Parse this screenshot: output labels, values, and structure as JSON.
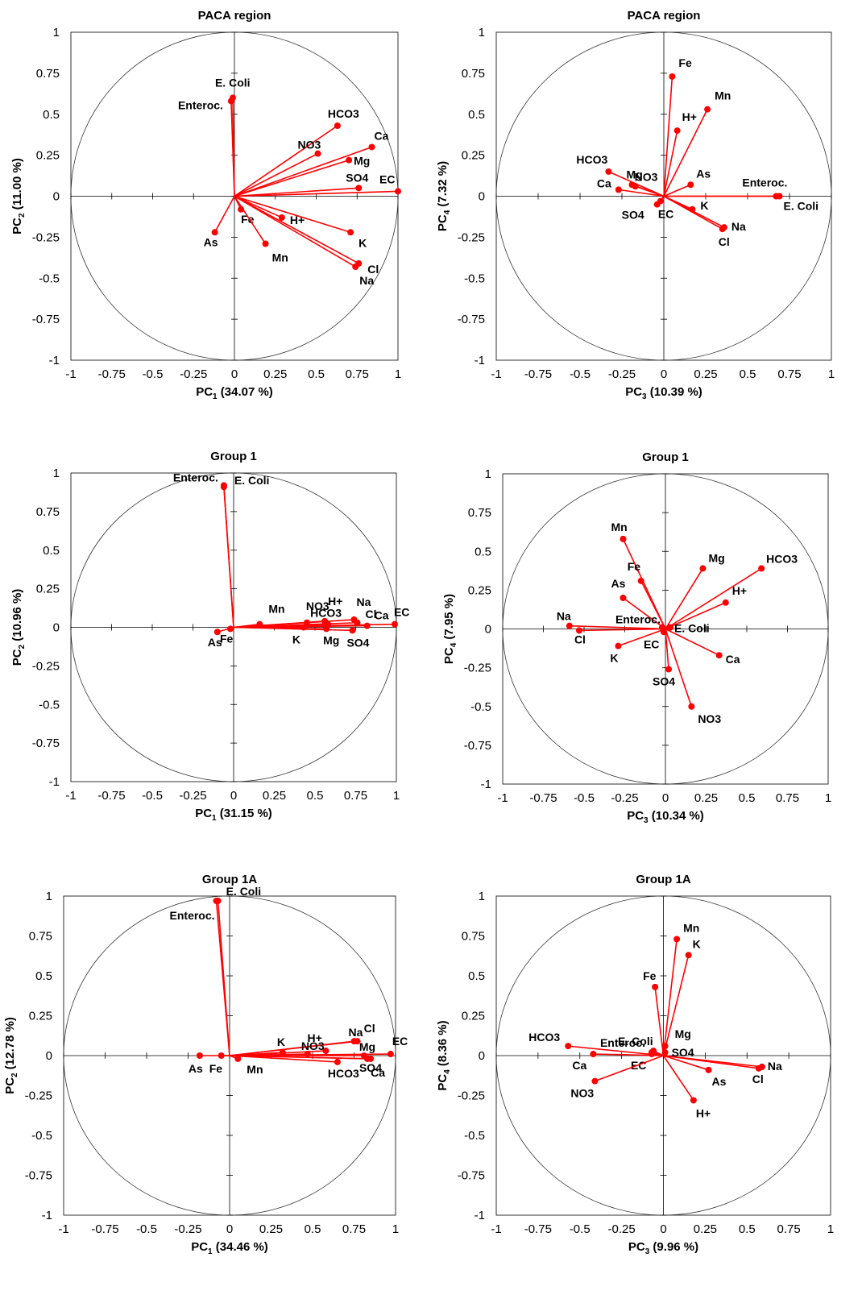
{
  "figure": {
    "background": "#ffffff",
    "vector_color": "#ff0000",
    "axis_color": "#000000"
  },
  "chart_data": [
    {
      "type": "scatter",
      "title": "PACA region",
      "xlabel_main": "PC",
      "xlabel_sub": "1",
      "xlabel_tail": " (34.07 %)",
      "ylabel_main": "PC",
      "ylabel_sub": "2",
      "ylabel_tail": " (11.00 %)",
      "xlim": [
        -1,
        1
      ],
      "ylim": [
        -1,
        1
      ],
      "xticks": [
        "-1",
        "-0.75",
        "-0.5",
        "-0.25",
        "0",
        "0.25",
        "0.5",
        "0.75",
        "1"
      ],
      "yticks": [
        "-1",
        "-0.75",
        "-0.5",
        "-0.25",
        "0",
        "0.25",
        "0.5",
        "0.75",
        "1"
      ],
      "points": [
        {
          "label": "E. Coli",
          "x": -0.01,
          "y": 0.6
        },
        {
          "label": "Enteroc.",
          "x": -0.02,
          "y": 0.58
        },
        {
          "label": "HCO3",
          "x": 0.63,
          "y": 0.43
        },
        {
          "label": "Ca",
          "x": 0.84,
          "y": 0.3
        },
        {
          "label": "NO3",
          "x": 0.51,
          "y": 0.26
        },
        {
          "label": "Mg",
          "x": 0.7,
          "y": 0.22
        },
        {
          "label": "SO4",
          "x": 0.76,
          "y": 0.05
        },
        {
          "label": "EC",
          "x": 1.0,
          "y": 0.03
        },
        {
          "label": "Fe",
          "x": 0.04,
          "y": -0.08
        },
        {
          "label": "H+",
          "x": 0.29,
          "y": -0.13
        },
        {
          "label": "As",
          "x": -0.12,
          "y": -0.22
        },
        {
          "label": "K",
          "x": 0.71,
          "y": -0.22
        },
        {
          "label": "Mn",
          "x": 0.19,
          "y": -0.29
        },
        {
          "label": "Cl",
          "x": 0.76,
          "y": -0.41
        },
        {
          "label": "Na",
          "x": 0.74,
          "y": -0.43
        }
      ]
    },
    {
      "type": "scatter",
      "title": "PACA region",
      "xlabel_main": "PC",
      "xlabel_sub": "3",
      "xlabel_tail": " (10.39 %)",
      "ylabel_main": "PC",
      "ylabel_sub": "4",
      "ylabel_tail": " (7.32 %)",
      "xlim": [
        -1,
        1
      ],
      "ylim": [
        -1,
        1
      ],
      "xticks": [
        "-1",
        "-0.75",
        "-0.5",
        "-0.25",
        "0",
        "0.25",
        "0.5",
        "0.75",
        "1"
      ],
      "yticks": [
        "-1",
        "-0.75",
        "-0.5",
        "-0.25",
        "0",
        "0.25",
        "0.5",
        "0.75",
        "1"
      ],
      "points": [
        {
          "label": "Fe",
          "x": 0.05,
          "y": 0.73
        },
        {
          "label": "Mn",
          "x": 0.26,
          "y": 0.53
        },
        {
          "label": "H+",
          "x": 0.08,
          "y": 0.4
        },
        {
          "label": "HCO3",
          "x": -0.33,
          "y": 0.15
        },
        {
          "label": "Mg",
          "x": -0.19,
          "y": 0.07
        },
        {
          "label": "NO3",
          "x": -0.17,
          "y": 0.06
        },
        {
          "label": "Ca",
          "x": -0.27,
          "y": 0.04
        },
        {
          "label": "As",
          "x": 0.16,
          "y": 0.07
        },
        {
          "label": "Enteroc.",
          "x": 0.67,
          "y": 0.0
        },
        {
          "label": "E. Coli",
          "x": 0.69,
          "y": 0.0
        },
        {
          "label": "SO4",
          "x": -0.04,
          "y": -0.05
        },
        {
          "label": "EC",
          "x": -0.02,
          "y": -0.03
        },
        {
          "label": "K",
          "x": 0.17,
          "y": -0.08
        },
        {
          "label": "Na",
          "x": 0.36,
          "y": -0.19
        },
        {
          "label": "Cl",
          "x": 0.35,
          "y": -0.2
        }
      ]
    },
    {
      "type": "scatter",
      "title": "Group 1",
      "xlabel_main": "PC",
      "xlabel_sub": "1",
      "xlabel_tail": " (31.15 %)",
      "ylabel_main": "PC",
      "ylabel_sub": "2",
      "ylabel_tail": " (10.96 %)",
      "xlim": [
        -1,
        1
      ],
      "ylim": [
        -1,
        1
      ],
      "xticks": [
        "-1",
        "-0.75",
        "-0.5",
        "-0.25",
        "0",
        "0.25",
        "0.5",
        "0.75",
        "1"
      ],
      "yticks": [
        "-1",
        "-0.75",
        "-0.5",
        "-0.25",
        "0",
        "0.25",
        "0.5",
        "0.75",
        "1"
      ],
      "points": [
        {
          "label": "Enteroc.",
          "x": -0.06,
          "y": 0.92
        },
        {
          "label": "E. Coli",
          "x": -0.06,
          "y": 0.91
        },
        {
          "label": "Mn",
          "x": 0.16,
          "y": 0.02
        },
        {
          "label": "NO3",
          "x": 0.45,
          "y": 0.03
        },
        {
          "label": "H+",
          "x": 0.56,
          "y": 0.04
        },
        {
          "label": "Na",
          "x": 0.74,
          "y": 0.05
        },
        {
          "label": "HCO3",
          "x": 0.58,
          "y": 0.02
        },
        {
          "label": "Cl",
          "x": 0.76,
          "y": 0.03
        },
        {
          "label": "Ca",
          "x": 0.82,
          "y": 0.01
        },
        {
          "label": "EC",
          "x": 0.99,
          "y": 0.02
        },
        {
          "label": "K",
          "x": 0.43,
          "y": 0.0
        },
        {
          "label": "Mg",
          "x": 0.57,
          "y": -0.01
        },
        {
          "label": "SO4",
          "x": 0.73,
          "y": -0.02
        },
        {
          "label": "As",
          "x": -0.1,
          "y": -0.03
        },
        {
          "label": "Fe",
          "x": -0.02,
          "y": -0.01
        }
      ]
    },
    {
      "type": "scatter",
      "title": "Group 1",
      "xlabel_main": "PC",
      "xlabel_sub": "3",
      "xlabel_tail": " (10.34 %)",
      "ylabel_main": "PC",
      "ylabel_sub": "4",
      "ylabel_tail": " (7.95 %)",
      "xlim": [
        -1,
        1
      ],
      "ylim": [
        -1,
        1
      ],
      "xticks": [
        "-1",
        "-0.75",
        "-0.5",
        "-0.25",
        "0",
        "0.25",
        "0.5",
        "0.75",
        "1"
      ],
      "yticks": [
        "-1",
        "-0.75",
        "-0.5",
        "-0.25",
        "0",
        "0.25",
        "0.5",
        "0.75",
        "1"
      ],
      "points": [
        {
          "label": "Mn",
          "x": -0.26,
          "y": 0.58
        },
        {
          "label": "Mg",
          "x": 0.23,
          "y": 0.39
        },
        {
          "label": "HCO3",
          "x": 0.59,
          "y": 0.39
        },
        {
          "label": "Fe",
          "x": -0.15,
          "y": 0.31
        },
        {
          "label": "As",
          "x": -0.26,
          "y": 0.2
        },
        {
          "label": "H+",
          "x": 0.37,
          "y": 0.17
        },
        {
          "label": "Enteroc.",
          "x": -0.02,
          "y": 0.01
        },
        {
          "label": "E. Coli",
          "x": 0.03,
          "y": 0.01
        },
        {
          "label": "Na",
          "x": -0.59,
          "y": 0.02
        },
        {
          "label": "Cl",
          "x": -0.53,
          "y": -0.01
        },
        {
          "label": "EC",
          "x": -0.01,
          "y": -0.02
        },
        {
          "label": "K",
          "x": -0.29,
          "y": -0.11
        },
        {
          "label": "Ca",
          "x": 0.33,
          "y": -0.17
        },
        {
          "label": "SO4",
          "x": 0.02,
          "y": -0.26
        },
        {
          "label": "NO3",
          "x": 0.16,
          "y": -0.5
        }
      ]
    },
    {
      "type": "scatter",
      "title": "Group 1A",
      "xlabel_main": "PC",
      "xlabel_sub": "1",
      "xlabel_tail": " (34.46 %)",
      "ylabel_main": "PC",
      "ylabel_sub": "2",
      "ylabel_tail": " (12.78 %)",
      "xlim": [
        -1,
        1
      ],
      "ylim": [
        -1,
        1
      ],
      "xticks": [
        "-1",
        "-0.75",
        "-0.5",
        "-0.25",
        "0",
        "0.25",
        "0.5",
        "0.75",
        "1"
      ],
      "yticks": [
        "-1",
        "-0.75",
        "-0.5",
        "-0.25",
        "0",
        "0.25",
        "0.5",
        "0.75",
        "1"
      ],
      "points": [
        {
          "label": "E. Coli",
          "x": -0.07,
          "y": 0.97
        },
        {
          "label": "Enteroc.",
          "x": -0.08,
          "y": 0.97
        },
        {
          "label": "Na",
          "x": 0.75,
          "y": 0.09
        },
        {
          "label": "Cl",
          "x": 0.77,
          "y": 0.09
        },
        {
          "label": "H+",
          "x": 0.58,
          "y": 0.03
        },
        {
          "label": "K",
          "x": 0.32,
          "y": 0.02
        },
        {
          "label": "NO3",
          "x": 0.47,
          "y": 0.01
        },
        {
          "label": "EC",
          "x": 0.97,
          "y": 0.01
        },
        {
          "label": "Mg",
          "x": 0.81,
          "y": 0.0
        },
        {
          "label": "SO4",
          "x": 0.83,
          "y": -0.02
        },
        {
          "label": "Ca",
          "x": 0.85,
          "y": -0.02
        },
        {
          "label": "HCO3",
          "x": 0.65,
          "y": -0.04
        },
        {
          "label": "As",
          "x": -0.18,
          "y": 0.0
        },
        {
          "label": "Fe",
          "x": -0.05,
          "y": 0.0
        },
        {
          "label": "Mn",
          "x": 0.05,
          "y": -0.02
        }
      ]
    },
    {
      "type": "scatter",
      "title": "Group 1A",
      "xlabel_main": "PC",
      "xlabel_sub": "3",
      "xlabel_tail": " (9.96 %)",
      "ylabel_main": "PC",
      "ylabel_sub": "4",
      "ylabel_tail": " (8.36 %)",
      "xlim": [
        -1,
        1
      ],
      "ylim": [
        -1,
        1
      ],
      "xticks": [
        "-1",
        "-0.75",
        "-0.5",
        "-0.25",
        "0",
        "0.25",
        "0.5",
        "0.75",
        "1"
      ],
      "yticks": [
        "-1",
        "-0.75",
        "-0.5",
        "-0.25",
        "0",
        "0.25",
        "0.5",
        "0.75",
        "1"
      ],
      "points": [
        {
          "label": "Mn",
          "x": 0.08,
          "y": 0.73
        },
        {
          "label": "K",
          "x": 0.15,
          "y": 0.63
        },
        {
          "label": "Fe",
          "x": -0.05,
          "y": 0.43
        },
        {
          "label": "E. Coli",
          "x": -0.06,
          "y": 0.03
        },
        {
          "label": "Enteroc.",
          "x": -0.07,
          "y": 0.02
        },
        {
          "label": "Mg",
          "x": 0.01,
          "y": 0.06
        },
        {
          "label": "SO4",
          "x": 0.01,
          "y": 0.02
        },
        {
          "label": "HCO3",
          "x": -0.57,
          "y": 0.06
        },
        {
          "label": "Ca",
          "x": -0.42,
          "y": 0.01
        },
        {
          "label": "EC",
          "x": -0.07,
          "y": 0.01
        },
        {
          "label": "NO3",
          "x": -0.41,
          "y": -0.16
        },
        {
          "label": "As",
          "x": 0.27,
          "y": -0.09
        },
        {
          "label": "Cl",
          "x": 0.57,
          "y": -0.08
        },
        {
          "label": "Na",
          "x": 0.59,
          "y": -0.07
        },
        {
          "label": "H+",
          "x": 0.18,
          "y": -0.28
        }
      ]
    }
  ]
}
